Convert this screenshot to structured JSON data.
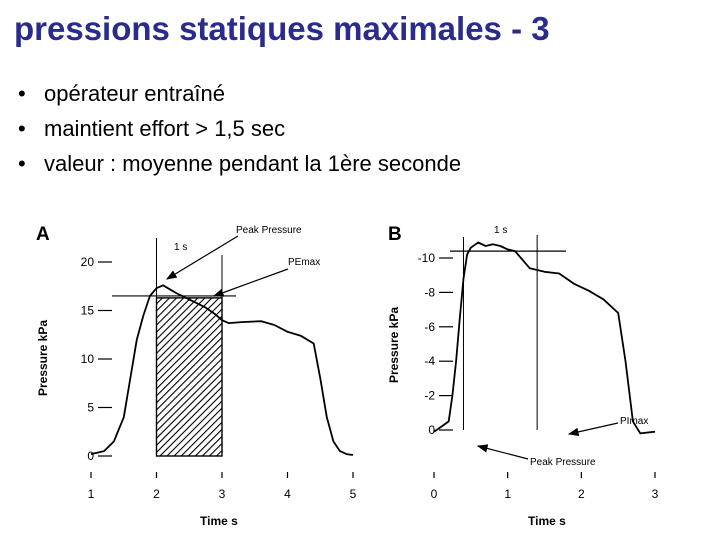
{
  "slide": {
    "title": "pressions statiques maximales - 3",
    "bullets": [
      "opérateur entraîné",
      "maintient effort > 1,5 sec",
      "valeur : moyenne pendant la 1ère seconde"
    ],
    "bullet_symbol": "•"
  },
  "colors": {
    "title": "#2b2b8c",
    "ink": "#000000"
  },
  "chart_data": [
    {
      "type": "line",
      "panel_label": "A",
      "xlabel": "Time s",
      "ylabel": "Pressure kPa",
      "x_ticks": [
        "1",
        "2",
        "3",
        "4",
        "5"
      ],
      "y_ticks": [
        "0",
        "5",
        "10",
        "15",
        "20"
      ],
      "xlim": [
        1,
        5
      ],
      "ylim": [
        0,
        20
      ],
      "annotations": {
        "peak": "Peak Pressure",
        "max": "PEmax",
        "window": "1 s"
      },
      "window": [
        2,
        3
      ],
      "plateau_value": 16.5,
      "x": [
        1,
        1.2,
        1.35,
        1.5,
        1.6,
        1.7,
        1.8,
        1.9,
        2.0,
        2.1,
        2.2,
        2.3,
        2.45,
        2.6,
        2.75,
        2.9,
        3.0,
        3.1,
        3.3,
        3.6,
        3.8,
        4.0,
        4.2,
        4.4,
        4.5,
        4.6,
        4.7,
        4.8,
        4.9,
        5.0
      ],
      "y": [
        0.2,
        0.5,
        1.5,
        4,
        8,
        12,
        14.5,
        16.5,
        17.3,
        17.6,
        17.2,
        16.8,
        16.3,
        15.8,
        15.3,
        14.6,
        14.0,
        13.7,
        13.8,
        13.9,
        13.5,
        12.8,
        12.4,
        11.6,
        8,
        4,
        1.5,
        0.5,
        0.2,
        0.1
      ]
    },
    {
      "type": "line",
      "panel_label": "B",
      "xlabel": "Time s",
      "ylabel": "Pressure kPa",
      "x_ticks": [
        "0",
        "1",
        "2",
        "3"
      ],
      "y_ticks": [
        "0",
        "-2",
        "-4",
        "-6",
        "-8",
        "-10"
      ],
      "xlim": [
        0,
        3
      ],
      "ylim": [
        -10,
        0
      ],
      "annotations": {
        "peak": "Peak Pressure",
        "max": "PImax",
        "window": "1 s"
      },
      "window": [
        0.4,
        1.4
      ],
      "plateau_value": -10.4,
      "x": [
        0,
        0.1,
        0.2,
        0.25,
        0.3,
        0.35,
        0.4,
        0.45,
        0.5,
        0.6,
        0.7,
        0.8,
        0.9,
        1.0,
        1.1,
        1.3,
        1.5,
        1.7,
        1.9,
        2.1,
        2.3,
        2.5,
        2.6,
        2.7,
        2.8,
        3.0
      ],
      "y": [
        0.1,
        -0.2,
        -0.5,
        -2,
        -4,
        -6.5,
        -8.8,
        -10.2,
        -10.6,
        -10.9,
        -10.7,
        -10.8,
        -10.7,
        -10.5,
        -10.4,
        -9.4,
        -9.2,
        -9.1,
        -8.5,
        -8.1,
        -7.6,
        -6.8,
        -4,
        -0.5,
        0.2,
        0.1
      ]
    }
  ]
}
